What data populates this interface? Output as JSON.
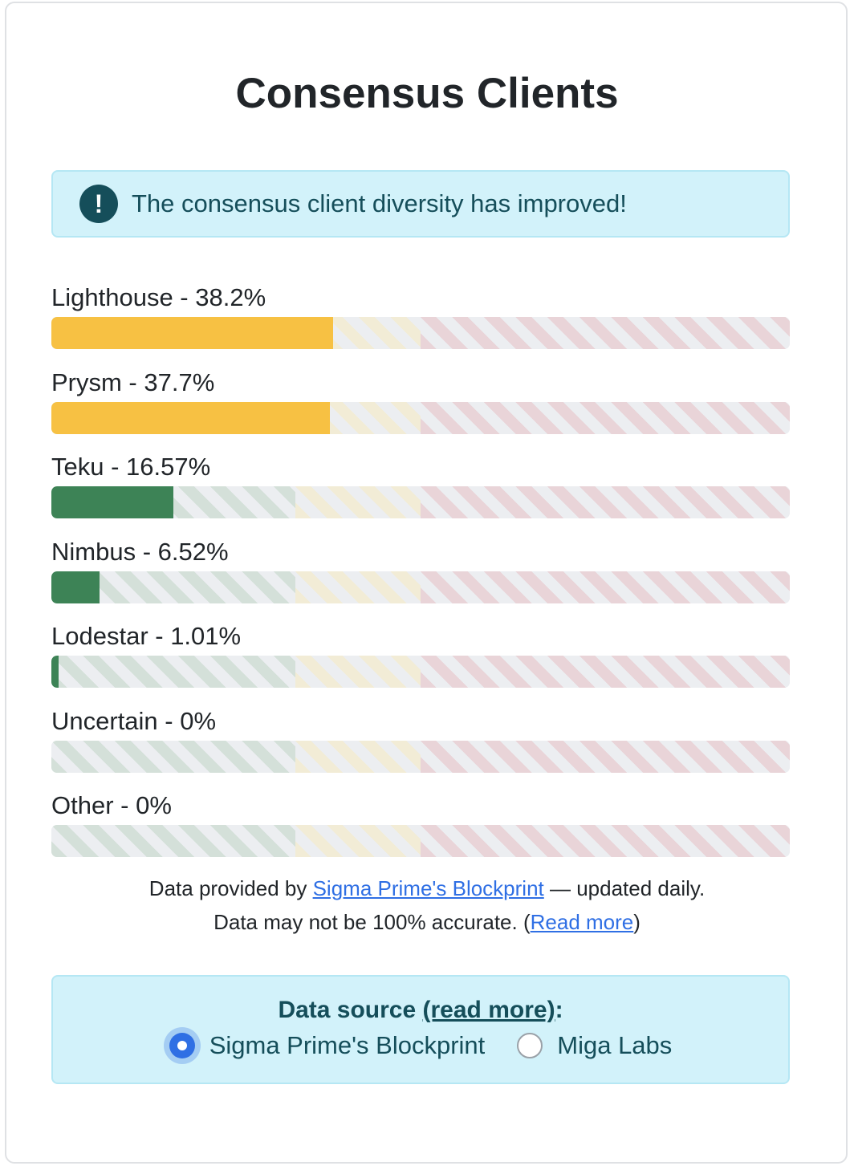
{
  "title": "Consensus Clients",
  "alert": {
    "icon": "exclamation-circle-icon",
    "text": "The consensus client diversity has improved!"
  },
  "colors": {
    "fill_yellow": "#f7c143",
    "fill_green": "#3d8356",
    "zone_green": "#d4e0d9",
    "zone_yellow": "#f2ecd6",
    "zone_red": "#e9d4d8"
  },
  "chart_data": {
    "type": "bar",
    "orientation": "horizontal",
    "unit": "%",
    "xlim": [
      0,
      100
    ],
    "threshold_zones": [
      {
        "from": 0,
        "to": 33,
        "color": "green"
      },
      {
        "from": 33,
        "to": 50,
        "color": "yellow"
      },
      {
        "from": 50,
        "to": 100,
        "color": "red"
      }
    ],
    "categories": [
      "Lighthouse",
      "Prysm",
      "Teku",
      "Nimbus",
      "Lodestar",
      "Uncertain",
      "Other"
    ],
    "values": [
      38.2,
      37.7,
      16.57,
      6.52,
      1.01,
      0,
      0
    ],
    "labels": [
      "Lighthouse - 38.2%",
      "Prysm - 37.7%",
      "Teku - 16.57%",
      "Nimbus - 6.52%",
      "Lodestar - 1.01%",
      "Uncertain - 0%",
      "Other - 0%"
    ]
  },
  "footnote": {
    "line1_prefix": "Data provided by ",
    "line1_link": "Sigma Prime's Blockprint",
    "line1_suffix": " — updated daily.",
    "line2_prefix": "Data may not be 100% accurate. (",
    "line2_link": "Read more",
    "line2_suffix": ")"
  },
  "data_source": {
    "title_prefix": "Data source ",
    "title_link": "(read more)",
    "title_suffix": ":",
    "options": [
      {
        "label": "Sigma Prime's Blockprint",
        "checked": true
      },
      {
        "label": "Miga Labs",
        "checked": false
      }
    ]
  }
}
